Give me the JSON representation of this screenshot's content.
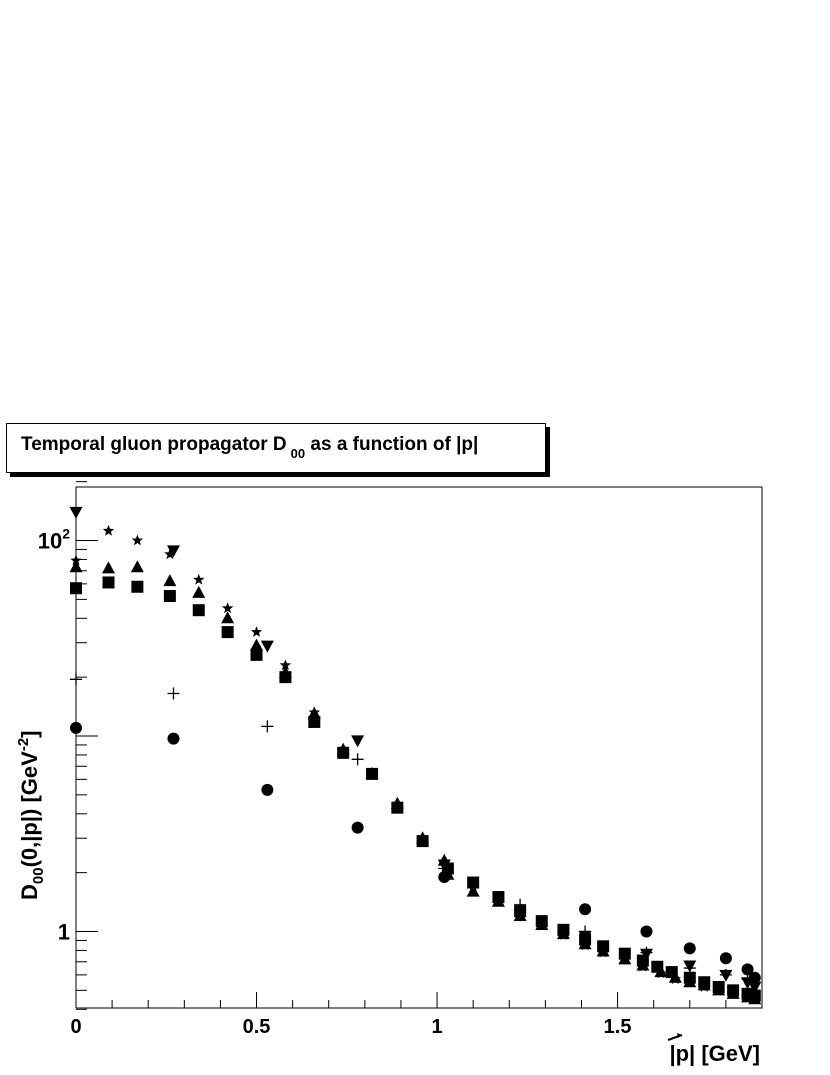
{
  "chart_data": {
    "type": "scatter",
    "title": "Temporal gluon propagator D_00 as a function of |p|",
    "title_parts": {
      "main": "Temporal gluon propagator D",
      "sub": "00",
      "tail": " as a function of |",
      "vec": "p",
      "end": "|"
    },
    "xlabel": "|p| [GeV]",
    "ylabel": "D00(0,|p|) [GeV-2]",
    "xlabel_parts": {
      "pre": "|",
      "vec": "p",
      "post": "| [GeV]"
    },
    "ylabel_parts": {
      "d": "D",
      "sub": "00",
      "mid": "(0,|",
      "vec": "p",
      "mid2": "|) [GeV",
      "sup": "-2",
      "end": "]"
    },
    "xlim": [
      0,
      1.9
    ],
    "ylim": [
      0.4,
      200
    ],
    "yscale": "log",
    "xticks": [
      0,
      0.5,
      1,
      1.5
    ],
    "xtick_labels": [
      "0",
      "0.5",
      "1",
      "1.5"
    ],
    "ytick_labels": [
      {
        "value": 100,
        "base": "10",
        "exp": "2"
      },
      {
        "value": 1,
        "base": "1",
        "exp": ""
      }
    ],
    "grid": false,
    "series": [
      {
        "marker": "circle",
        "points": [
          [
            0,
            11
          ],
          [
            0.27,
            9.7
          ],
          [
            0.53,
            5.3
          ],
          [
            0.78,
            3.4
          ],
          [
            1.02,
            1.9
          ],
          [
            1.41,
            1.3
          ],
          [
            1.58,
            1.0
          ],
          [
            1.7,
            0.82
          ],
          [
            1.8,
            0.73
          ],
          [
            1.86,
            0.64
          ],
          [
            1.88,
            0.58
          ]
        ]
      },
      {
        "marker": "square",
        "points": [
          [
            0,
            57
          ],
          [
            0.09,
            61
          ],
          [
            0.17,
            58
          ],
          [
            0.26,
            52
          ],
          [
            0.34,
            44
          ],
          [
            0.42,
            34
          ],
          [
            0.5,
            26
          ],
          [
            0.58,
            20
          ],
          [
            0.66,
            11.8
          ],
          [
            0.74,
            8.2
          ],
          [
            0.82,
            6.4
          ],
          [
            0.89,
            4.3
          ],
          [
            0.96,
            2.9
          ],
          [
            1.03,
            2.1
          ],
          [
            1.1,
            1.78
          ],
          [
            1.17,
            1.5
          ],
          [
            1.23,
            1.27
          ],
          [
            1.29,
            1.13
          ],
          [
            1.35,
            1.02
          ],
          [
            1.41,
            0.91
          ],
          [
            1.46,
            0.84
          ],
          [
            1.52,
            0.77
          ],
          [
            1.57,
            0.71
          ],
          [
            1.61,
            0.66
          ],
          [
            1.65,
            0.62
          ],
          [
            1.7,
            0.58
          ],
          [
            1.74,
            0.55
          ],
          [
            1.78,
            0.52
          ],
          [
            1.82,
            0.5
          ],
          [
            1.86,
            0.48
          ],
          [
            1.88,
            0.47
          ]
        ]
      },
      {
        "marker": "triangle-up",
        "points": [
          [
            0,
            73
          ],
          [
            0.09,
            72
          ],
          [
            0.17,
            73
          ],
          [
            0.26,
            62
          ],
          [
            0.34,
            54
          ],
          [
            0.42,
            40
          ],
          [
            0.5,
            29
          ],
          [
            0.58,
            21
          ],
          [
            0.66,
            13
          ],
          [
            0.74,
            8.5
          ],
          [
            0.82,
            6.4
          ],
          [
            0.89,
            4.5
          ],
          [
            0.96,
            3.0
          ],
          [
            1.02,
            2.3
          ],
          [
            1.03,
            1.95
          ],
          [
            1.1,
            1.6
          ],
          [
            1.17,
            1.42
          ],
          [
            1.23,
            1.2
          ],
          [
            1.29,
            1.08
          ],
          [
            1.35,
            0.97
          ],
          [
            1.41,
            0.86
          ],
          [
            1.46,
            0.79
          ],
          [
            1.52,
            0.72
          ],
          [
            1.57,
            0.67
          ],
          [
            1.62,
            0.62
          ],
          [
            1.66,
            0.58
          ],
          [
            1.7,
            0.55
          ],
          [
            1.74,
            0.53
          ],
          [
            1.78,
            0.5
          ],
          [
            1.82,
            0.48
          ],
          [
            1.86,
            0.46
          ],
          [
            1.88,
            0.45
          ]
        ]
      },
      {
        "marker": "triangle-down",
        "points": [
          [
            0,
            140
          ],
          [
            0.27,
            89
          ],
          [
            0.53,
            29
          ],
          [
            0.78,
            9.5
          ],
          [
            1.02,
            2.2
          ],
          [
            1.23,
            1.22
          ],
          [
            1.41,
            0.95
          ],
          [
            1.58,
            0.77
          ],
          [
            1.7,
            0.67
          ],
          [
            1.8,
            0.6
          ],
          [
            1.86,
            0.55
          ],
          [
            1.88,
            0.52
          ]
        ]
      },
      {
        "marker": "star",
        "points": [
          [
            0,
            79
          ],
          [
            0.09,
            112
          ],
          [
            0.17,
            100
          ],
          [
            0.26,
            85
          ],
          [
            0.34,
            63
          ],
          [
            0.42,
            45
          ],
          [
            0.5,
            34
          ],
          [
            0.58,
            23
          ],
          [
            0.66,
            13.2
          ],
          [
            0.74,
            8.6
          ],
          [
            0.82,
            6.4
          ],
          [
            0.89,
            4.4
          ],
          [
            0.96,
            3.0
          ],
          [
            1.03,
            2.1
          ],
          [
            1.1,
            1.7
          ],
          [
            1.17,
            1.42
          ],
          [
            1.23,
            1.2
          ],
          [
            1.29,
            1.07
          ],
          [
            1.35,
            0.96
          ],
          [
            1.41,
            0.85
          ],
          [
            1.46,
            0.78
          ],
          [
            1.52,
            0.72
          ],
          [
            1.57,
            0.66
          ],
          [
            1.62,
            0.61
          ],
          [
            1.66,
            0.57
          ],
          [
            1.7,
            0.55
          ],
          [
            1.74,
            0.52
          ],
          [
            1.78,
            0.5
          ],
          [
            1.82,
            0.48
          ],
          [
            1.86,
            0.46
          ],
          [
            1.88,
            0.45
          ]
        ]
      },
      {
        "marker": "cross",
        "points": [
          [
            0,
            19.5
          ],
          [
            0.27,
            16.5
          ],
          [
            0.53,
            11.2
          ],
          [
            0.78,
            7.6
          ],
          [
            1.02,
            2.1
          ],
          [
            1.23,
            1.37
          ],
          [
            1.41,
            1.0
          ],
          [
            1.58,
            0.78
          ],
          [
            1.7,
            0.65
          ],
          [
            1.8,
            0.6
          ],
          [
            1.86,
            0.57
          ],
          [
            1.88,
            0.55
          ]
        ]
      }
    ]
  }
}
